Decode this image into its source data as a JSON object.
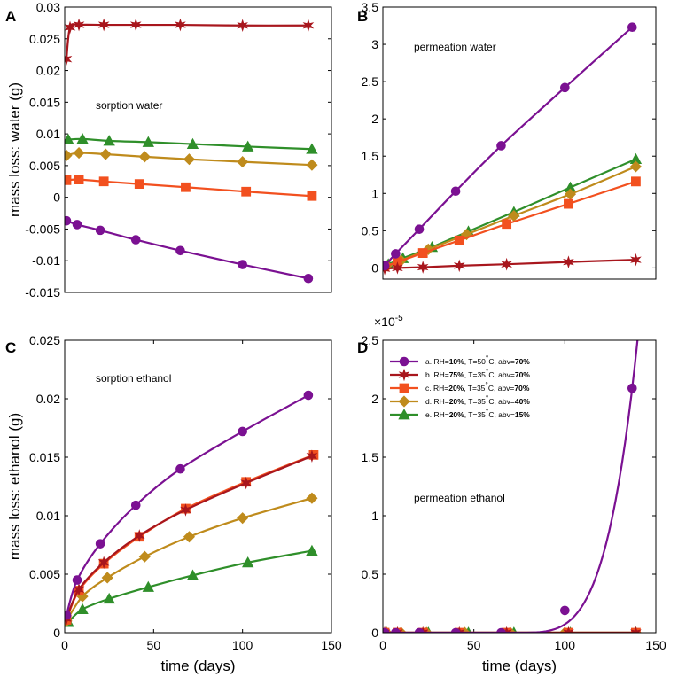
{
  "figure": {
    "legend": {
      "entries": [
        {
          "key": "a",
          "prefix": "a. RH=",
          "rh": "10%",
          "temp": ", T=50",
          "deg": "°",
          "unit": "C, abv=",
          "abv": "70%"
        },
        {
          "key": "b",
          "prefix": "b. RH=",
          "rh": "75%",
          "temp": ", T=35",
          "deg": "°",
          "unit": "C, abv=",
          "abv": "70%"
        },
        {
          "key": "c",
          "prefix": "c. RH=",
          "rh": "20%",
          "temp": ", T=35",
          "deg": "°",
          "unit": "C, abv=",
          "abv": "70%"
        },
        {
          "key": "d",
          "prefix": "d. RH=",
          "rh": "20%",
          "temp": ", T=35",
          "deg": "°",
          "unit": "C, abv=",
          "abv": "40%"
        },
        {
          "key": "e",
          "prefix": "e. RH=",
          "rh": "20%",
          "temp": ", T=35",
          "deg": "°",
          "unit": "C, abv=",
          "abv": "15%"
        }
      ]
    }
  },
  "series_style": {
    "a": {
      "color": "#7b1192",
      "marker": "circle"
    },
    "b": {
      "color": "#a8161d",
      "marker": "star"
    },
    "c": {
      "color": "#f2501f",
      "marker": "square"
    },
    "d": {
      "color": "#bf8b1c",
      "marker": "diamond"
    },
    "e": {
      "color": "#2f8f2a",
      "marker": "triangle"
    }
  },
  "chart_data": [
    {
      "panel": "A",
      "type": "line",
      "annotation": "sorption water",
      "xlabel": "",
      "ylabel": "mass loss: water (g)",
      "xlim": [
        0,
        150
      ],
      "ylim": [
        -0.015,
        0.03
      ],
      "xticks": [],
      "yticks": [
        -0.015,
        -0.01,
        -0.005,
        0,
        0.005,
        0.01,
        0.015,
        0.02,
        0.025,
        0.03
      ],
      "ytick_labels": [
        "-0.015",
        "-0.01",
        "-0.005",
        "0",
        "0.005",
        "0.01",
        "0.015",
        "0.02",
        "0.025",
        "0.03"
      ],
      "series": [
        {
          "key": "a",
          "x": [
            1,
            7,
            20,
            40,
            65,
            100,
            137
          ],
          "values": [
            -0.0037,
            -0.0043,
            -0.0052,
            -0.0067,
            -0.0084,
            -0.0106,
            -0.0128
          ]
        },
        {
          "key": "b",
          "x": [
            1,
            3,
            8,
            22,
            40,
            65,
            100,
            137
          ],
          "values": [
            0.0218,
            0.0268,
            0.0272,
            0.0272,
            0.0272,
            0.0272,
            0.0271,
            0.0271
          ]
        },
        {
          "key": "c",
          "x": [
            1,
            8,
            22,
            42,
            68,
            102,
            139
          ],
          "values": [
            0.0027,
            0.0028,
            0.0025,
            0.0021,
            0.0016,
            0.0009,
            0.0002
          ]
        },
        {
          "key": "d",
          "x": [
            1,
            8,
            23,
            45,
            70,
            100,
            139
          ],
          "values": [
            0.0066,
            0.007,
            0.0068,
            0.0064,
            0.006,
            0.0056,
            0.0051
          ]
        },
        {
          "key": "e",
          "x": [
            2,
            10,
            25,
            47,
            72,
            103,
            139
          ],
          "values": [
            0.0091,
            0.0092,
            0.0089,
            0.0087,
            0.0084,
            0.008,
            0.0076
          ]
        }
      ]
    },
    {
      "panel": "B",
      "type": "line",
      "annotation": "permeation water",
      "xlabel": "",
      "ylabel": "",
      "xlim": [
        0,
        150
      ],
      "ylim": [
        -0.15,
        3.5
      ],
      "xticks": [],
      "yticks": [
        0,
        0.5,
        1,
        1.5,
        2,
        2.5,
        3,
        3.5
      ],
      "ytick_labels": [
        "0",
        "0.5",
        "1",
        "1.5",
        "2",
        "2.5",
        "3",
        "3.5"
      ],
      "series": [
        {
          "key": "a",
          "x": [
            1,
            7,
            20,
            40,
            65,
            100,
            137
          ],
          "values": [
            0.03,
            0.19,
            0.52,
            1.03,
            1.64,
            2.42,
            3.23
          ]
        },
        {
          "key": "b",
          "x": [
            1,
            8,
            22,
            42,
            68,
            102,
            139
          ],
          "values": [
            -0.01,
            0.0,
            0.01,
            0.03,
            0.05,
            0.08,
            0.11
          ]
        },
        {
          "key": "c",
          "x": [
            1,
            8,
            22,
            42,
            68,
            102,
            139
          ],
          "values": [
            0.02,
            0.08,
            0.2,
            0.37,
            0.59,
            0.86,
            1.16
          ]
        },
        {
          "key": "d",
          "x": [
            2,
            10,
            25,
            46,
            72,
            103,
            139
          ],
          "values": [
            0.03,
            0.1,
            0.25,
            0.45,
            0.7,
            0.99,
            1.36
          ]
        },
        {
          "key": "e",
          "x": [
            3,
            11,
            27,
            47,
            72,
            103,
            139
          ],
          "values": [
            0.05,
            0.13,
            0.28,
            0.49,
            0.75,
            1.08,
            1.46
          ]
        }
      ]
    },
    {
      "panel": "C",
      "type": "line",
      "annotation": "sorption ethanol",
      "xlabel": "time (days)",
      "ylabel": "mass loss: ethanol (g)",
      "xlim": [
        0,
        150
      ],
      "ylim": [
        0,
        0.025
      ],
      "xticks": [
        0,
        50,
        100,
        150
      ],
      "xtick_labels": [
        "0",
        "50",
        "100",
        "150"
      ],
      "yticks": [
        0,
        0.005,
        0.01,
        0.015,
        0.02,
        0.025
      ],
      "ytick_labels": [
        "0",
        "0.005",
        "0.01",
        "0.015",
        "0.02",
        "0.025"
      ],
      "series": [
        {
          "key": "a",
          "x": [
            1,
            7,
            20,
            40,
            65,
            100,
            137
          ],
          "values": [
            0.0015,
            0.0045,
            0.0076,
            0.0109,
            0.014,
            0.0172,
            0.0203
          ]
        },
        {
          "key": "b",
          "x": [
            1,
            8,
            22,
            42,
            68,
            102,
            139
          ],
          "values": [
            0.0012,
            0.0037,
            0.006,
            0.0083,
            0.0105,
            0.0128,
            0.0151
          ]
        },
        {
          "key": "c",
          "x": [
            1,
            8,
            22,
            42,
            68,
            102,
            140
          ],
          "values": [
            0.0011,
            0.0036,
            0.0059,
            0.0082,
            0.0106,
            0.0129,
            0.0152
          ]
        },
        {
          "key": "d",
          "x": [
            1,
            10,
            24,
            45,
            70,
            100,
            139
          ],
          "values": [
            0.001,
            0.0031,
            0.0047,
            0.0065,
            0.0082,
            0.0098,
            0.0115
          ]
        },
        {
          "key": "e",
          "x": [
            2,
            10,
            25,
            47,
            72,
            103,
            139
          ],
          "values": [
            0.0009,
            0.002,
            0.0029,
            0.0039,
            0.0049,
            0.006,
            0.007
          ]
        }
      ]
    },
    {
      "panel": "D",
      "type": "line",
      "annotation": "permeation ethanol",
      "xlabel": "time (days)",
      "ylabel": "",
      "exponent_label": "×10",
      "exponent_power": "-5",
      "xlim": [
        0,
        150
      ],
      "ylim": [
        0,
        2.5
      ],
      "xticks": [
        0,
        50,
        100,
        150
      ],
      "xtick_labels": [
        "0",
        "50",
        "100",
        "150"
      ],
      "yticks": [
        0,
        0.5,
        1,
        1.5,
        2,
        2.5
      ],
      "ytick_labels": [
        "0",
        "0.5",
        "1",
        "1.5",
        "2",
        "2.5"
      ],
      "series": [
        {
          "key": "a",
          "x": [
            1,
            7,
            20,
            40,
            65,
            100,
            137
          ],
          "values": [
            0,
            0,
            0,
            0,
            0,
            0.19,
            2.09
          ]
        },
        {
          "key": "b",
          "x": [
            1,
            8,
            22,
            42,
            68,
            102,
            139
          ],
          "values": [
            0,
            0,
            0,
            0,
            0,
            0,
            0
          ]
        },
        {
          "key": "c",
          "x": [
            1,
            8,
            22,
            42,
            68,
            102,
            139
          ],
          "values": [
            0,
            0,
            0,
            0,
            0,
            0,
            0
          ]
        },
        {
          "key": "d",
          "x": [
            2,
            10,
            24,
            45,
            70,
            100,
            139
          ],
          "values": [
            0,
            0,
            0,
            0,
            0,
            0,
            0
          ]
        },
        {
          "key": "e",
          "x": [
            2,
            10,
            25,
            47,
            72,
            103,
            139
          ],
          "values": [
            0,
            0,
            0,
            0,
            0,
            0,
            0
          ]
        }
      ]
    }
  ]
}
